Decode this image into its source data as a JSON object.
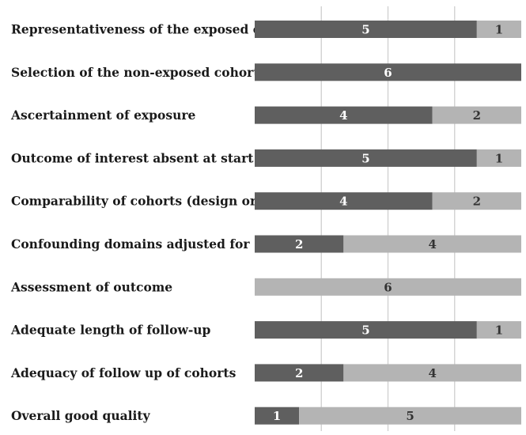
{
  "chart_data": {
    "type": "bar",
    "orientation": "horizontal",
    "stacked": true,
    "title": "",
    "xlabel": "",
    "ylabel": "",
    "xlim": [
      0,
      6
    ],
    "grid": true,
    "legend": "none",
    "categories": [
      "Representativeness of the exposed cohort",
      "Selection of the non-exposed cohort",
      "Ascertainment of exposure",
      "Outcome of interest absent at start of study",
      "Comparability of cohorts (design or analysis)",
      "Confounding domains adjusted for",
      "Assessment of outcome",
      "Adequate length of follow-up",
      "Adequacy of follow up of cohorts",
      "Overall good quality"
    ],
    "series": [
      {
        "values": [
          5,
          6,
          4,
          5,
          4,
          2,
          0,
          5,
          2,
          1
        ],
        "color": "#5f5f5f",
        "label_color": "#ffffff"
      },
      {
        "values": [
          1,
          0,
          2,
          1,
          2,
          4,
          6,
          1,
          4,
          5
        ],
        "color": "#b4b4b4",
        "label_color": "#333333"
      }
    ],
    "gridline_color": "#d4d4d4"
  }
}
